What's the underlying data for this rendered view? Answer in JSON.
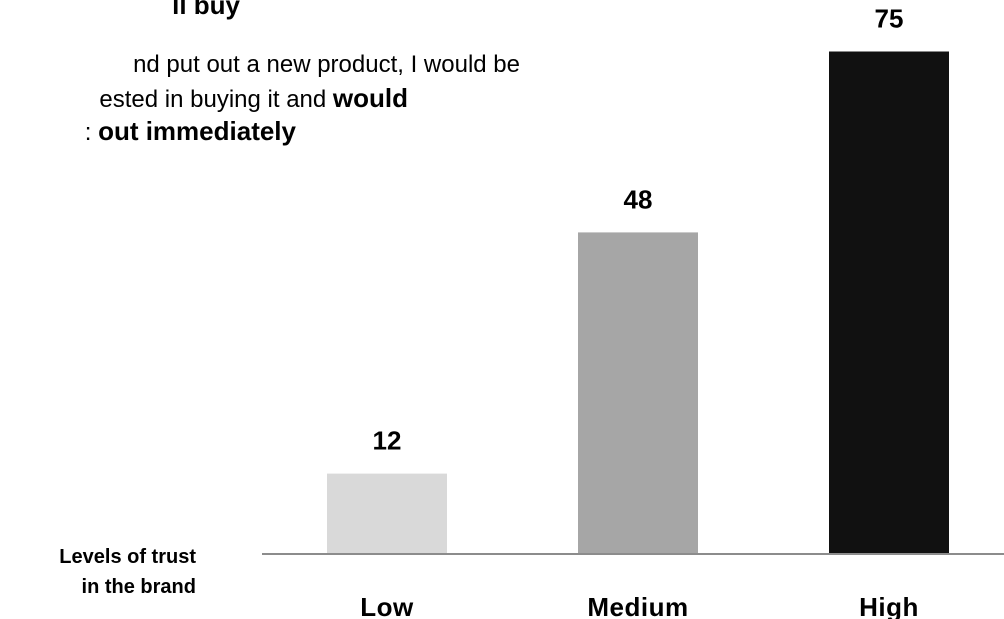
{
  "heading": {
    "title_fragment": "ll buy",
    "statement_line1": "nd put out a new product, I would be",
    "statement_line2_prefix": "ested in buying it and ",
    "statement_line2_bold": "would",
    "statement_line3_prefix": ": ",
    "statement_line3_bold": "out immediately"
  },
  "x_axis_title": {
    "line1": "Levels of trust",
    "line2": "in the brand"
  },
  "chart_data": {
    "type": "bar",
    "categories": [
      "Low",
      "Medium",
      "High"
    ],
    "values": [
      12,
      48,
      75
    ],
    "colors": [
      "#d9d9d9",
      "#a6a6a6",
      "#111111"
    ],
    "ylim": [
      0,
      80
    ],
    "grid": false,
    "legend": "none",
    "data_labels": [
      "12",
      "48",
      "75"
    ]
  }
}
